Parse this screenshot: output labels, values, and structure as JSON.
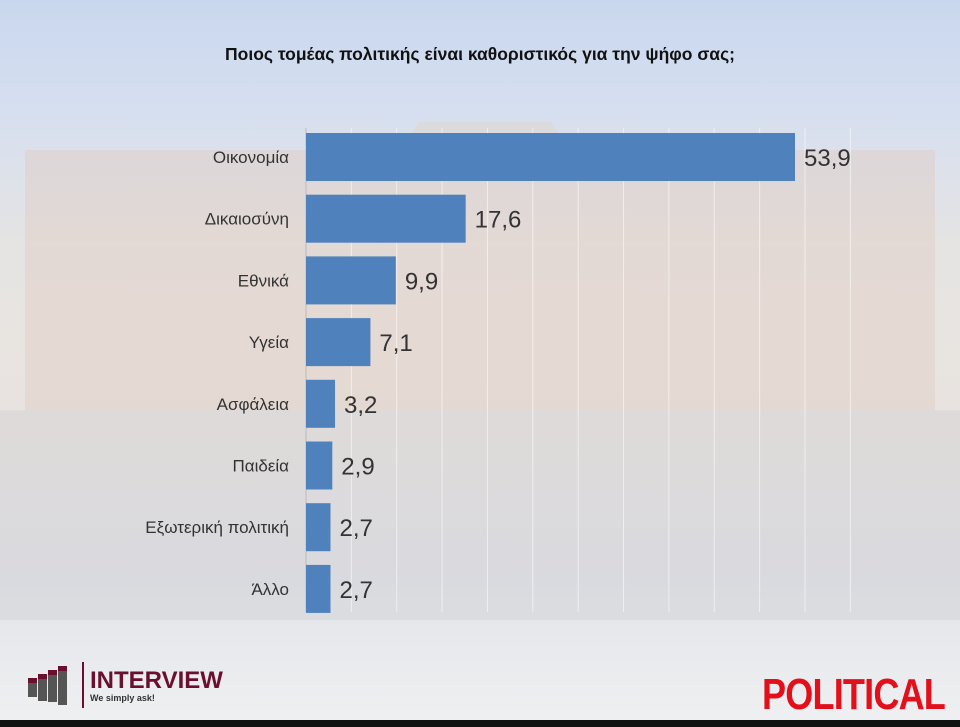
{
  "chart_data": {
    "type": "bar",
    "orientation": "horizontal",
    "title": "Ποιος τομέας πολιτικής είναι καθοριστικός για την ψήφο σας;",
    "categories": [
      "Οικονομία",
      "Δικαιοσύνη",
      "Εθνικά",
      "Υγεία",
      "Ασφάλεια",
      "Παιδεία",
      "Εξωτερική πολιτική",
      "Άλλο"
    ],
    "values": [
      53.9,
      17.6,
      9.9,
      7.1,
      3.2,
      2.9,
      2.7,
      2.7
    ],
    "value_labels": [
      "53,9",
      "17,6",
      "9,9",
      "7,1",
      "3,2",
      "2,9",
      "2,7",
      "2,7"
    ],
    "xlim": [
      0,
      60
    ],
    "grid": true,
    "bar_color": "#4f81bd"
  },
  "branding": {
    "left_logo": "INTERVIEW",
    "left_tagline": "We simply ask!",
    "right_logo": "POLITICAL",
    "left_color": "#6b0f2e",
    "right_color": "#e3101b"
  }
}
